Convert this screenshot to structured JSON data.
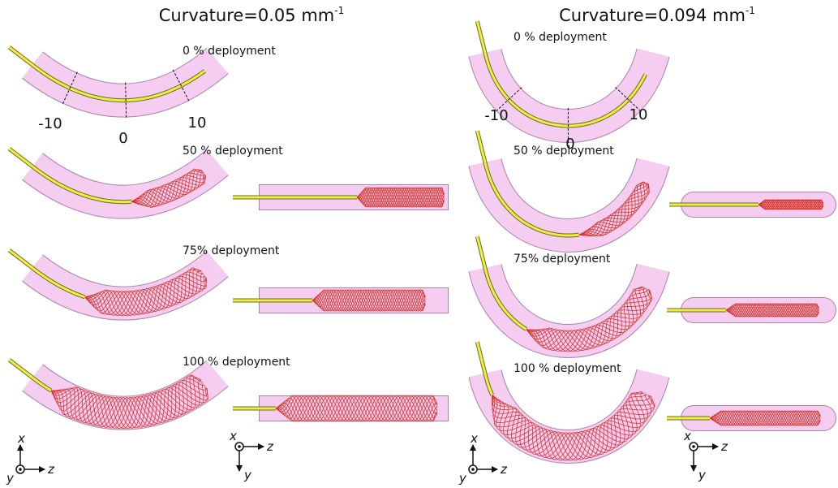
{
  "panels": [
    {
      "title": "Curvature=0.05 mm",
      "title_sup": "-1",
      "stages": [
        "0 % deployment",
        "50 % deployment",
        "75% deployment",
        "100 % deployment"
      ],
      "markers": [
        "-10",
        "0",
        "10"
      ],
      "triads": [
        {
          "x": "x",
          "y": "y",
          "z": "z"
        },
        {
          "x": "x",
          "y": "y",
          "z": "z"
        }
      ]
    },
    {
      "title": "Curvature=0.094 mm",
      "title_sup": "-1",
      "stages": [
        "0 % deployment",
        "50 % deployment",
        "75% deployment",
        "100 % deployment"
      ],
      "markers": [
        "-10",
        "0",
        "10"
      ],
      "triads": [
        {
          "x": "x",
          "y": "y",
          "z": "z"
        },
        {
          "x": "x",
          "y": "y",
          "z": "z"
        }
      ]
    }
  ]
}
